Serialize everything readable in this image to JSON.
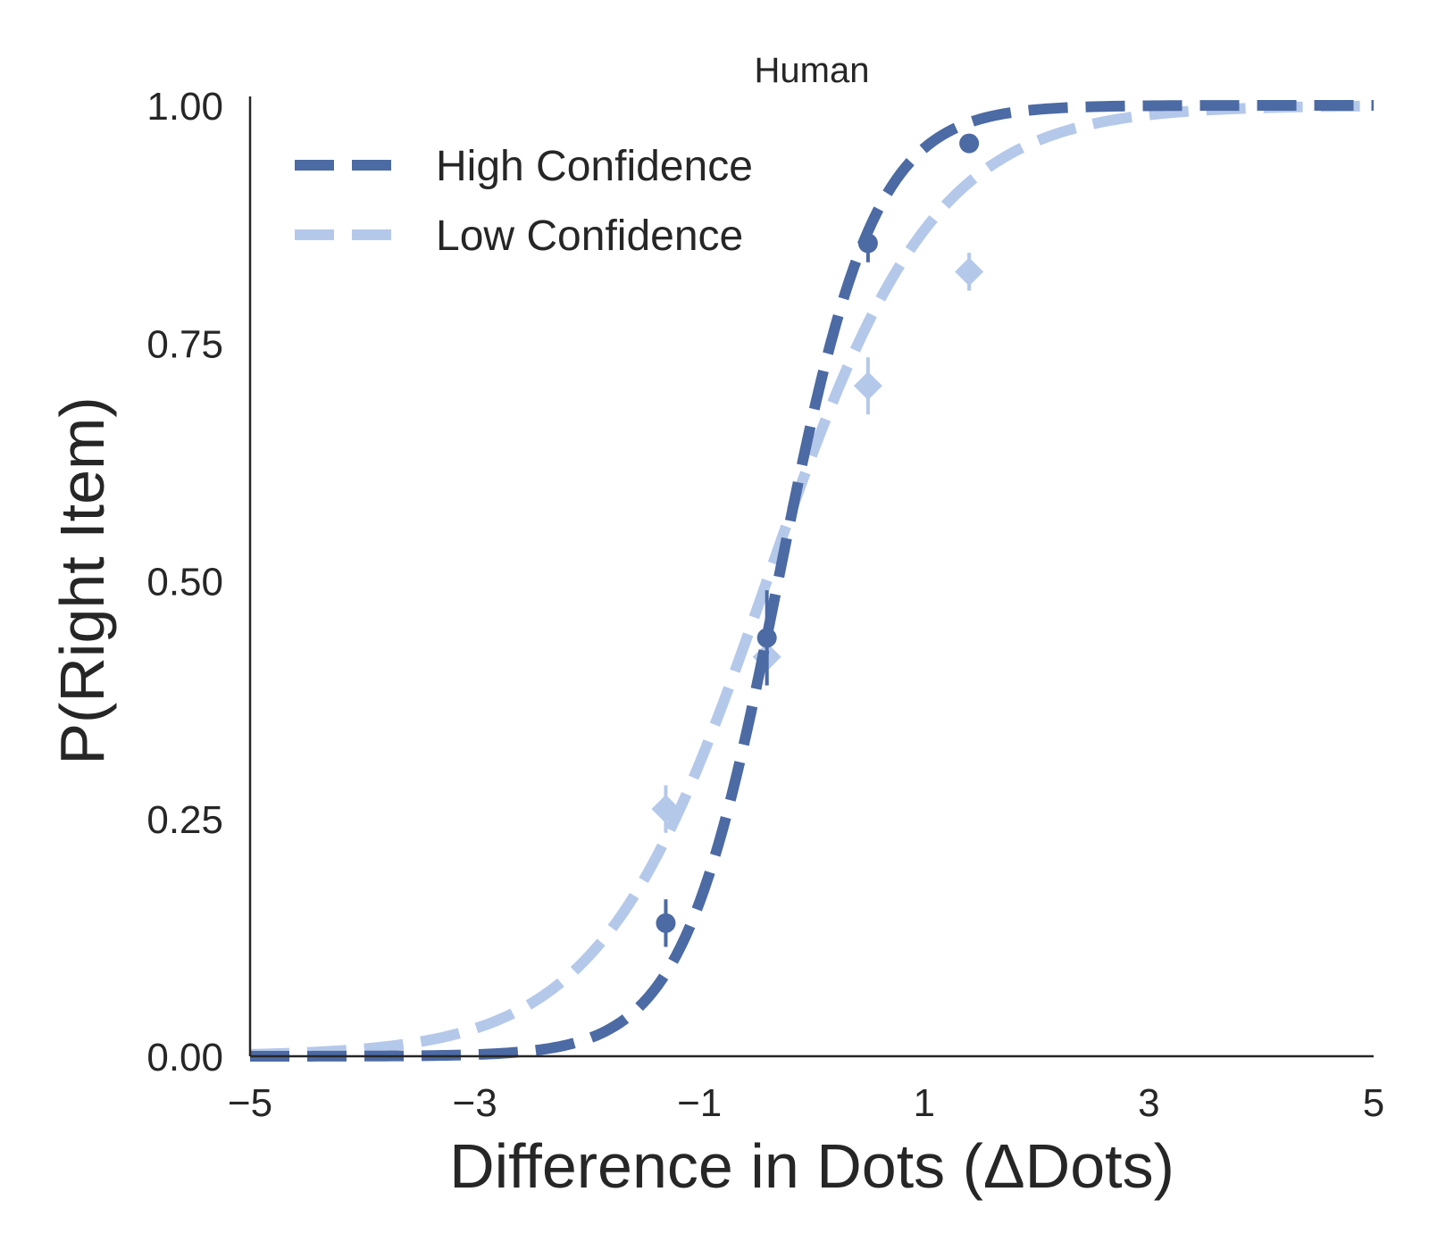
{
  "chart_data": {
    "type": "line",
    "title": "Human",
    "xlabel": "Difference in Dots (ΔDots)",
    "ylabel": "P(Right Item)",
    "xlim": [
      -5,
      5
    ],
    "ylim": [
      0,
      1
    ],
    "xticks": [
      -5,
      -3,
      -1,
      1,
      3,
      5
    ],
    "xtick_labels": [
      "−5",
      "−3",
      "−1",
      "1",
      "3",
      "5"
    ],
    "yticks": [
      0,
      0.25,
      0.5,
      0.75,
      1.0
    ],
    "ytick_labels": [
      "0.00",
      "0.25",
      "0.50",
      "0.75",
      "1.00"
    ],
    "grid": false,
    "legend_position": "top-left",
    "series": [
      {
        "name": "High Confidence",
        "color": "#4c6aa3",
        "line_style": "dashed",
        "marker": "circle",
        "fit": {
          "midpoint": -0.3,
          "slope": 2.35
        },
        "points": [
          {
            "x": -1.3,
            "y": 0.14,
            "err": 0.025
          },
          {
            "x": -0.4,
            "y": 0.44,
            "err": 0.05
          },
          {
            "x": 0.5,
            "y": 0.855,
            "err": 0.02
          },
          {
            "x": 1.4,
            "y": 0.96,
            "err": 0.01
          }
        ]
      },
      {
        "name": "Low Confidence",
        "color": "#b4c8ea",
        "line_style": "dashed",
        "marker": "diamond",
        "fit": {
          "midpoint": -0.4,
          "slope": 1.35
        },
        "points": [
          {
            "x": -1.3,
            "y": 0.26,
            "err": 0.025
          },
          {
            "x": -0.4,
            "y": 0.42,
            "err": 0.03
          },
          {
            "x": 0.5,
            "y": 0.705,
            "err": 0.03
          },
          {
            "x": 1.4,
            "y": 0.825,
            "err": 0.02
          }
        ]
      }
    ]
  }
}
